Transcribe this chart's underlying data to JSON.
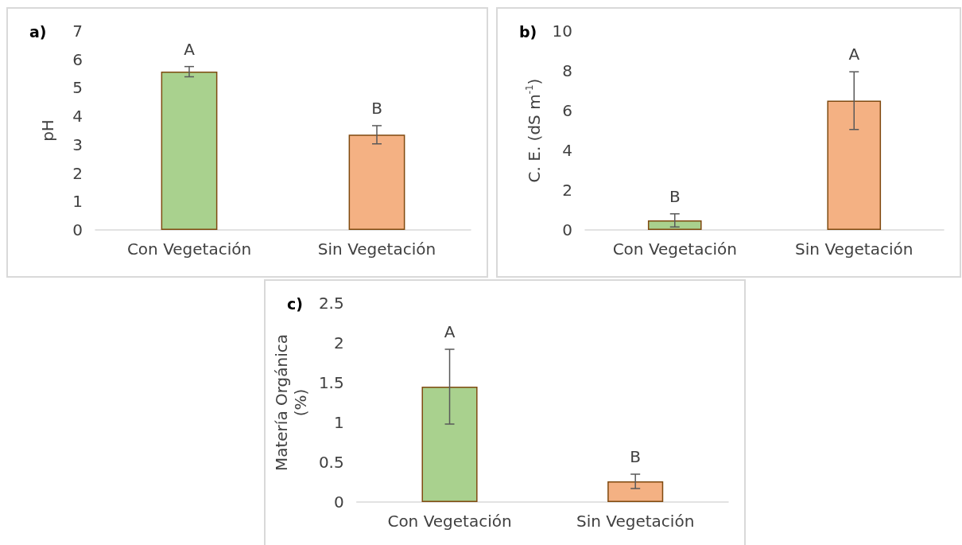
{
  "chart_data": [
    {
      "type": "bar",
      "title": "a)",
      "ylabel": "pH",
      "categories": [
        "Con Vegetación",
        "Sin Vegetación"
      ],
      "values": [
        5.57,
        3.35
      ],
      "errors": [
        0.18,
        0.32
      ],
      "colors": [
        "#a9d18e",
        "#f4b183"
      ],
      "ylim": [
        0,
        7
      ],
      "yticks": [
        0,
        1,
        2,
        3,
        4,
        5,
        6,
        7
      ],
      "annotations": [
        {
          "text": "A",
          "x": "Con Vegetación",
          "y": 5.75
        },
        {
          "text": "B",
          "x": "Sin Vegetación",
          "y": 3.67
        }
      ]
    },
    {
      "type": "bar",
      "title": "b)",
      "ylabel": "C. E. (dS m$^{-1}$)",
      "categories": [
        "Con Vegetación",
        "Sin Vegetación"
      ],
      "values": [
        0.48,
        6.5
      ],
      "errors": [
        0.33,
        1.45
      ],
      "colors": [
        "#a9d18e",
        "#f4b183"
      ],
      "ylim": [
        0,
        10
      ],
      "yticks": [
        0,
        2,
        4,
        6,
        8,
        10
      ],
      "annotations": [
        {
          "text": "B",
          "x": "Con Vegetación",
          "y": 0.81
        },
        {
          "text": "A",
          "x": "Sin Vegetación",
          "y": 7.95
        }
      ]
    },
    {
      "type": "bar",
      "title": "c)",
      "ylabel": "Matería Orgánica\n(%)",
      "categories": [
        "Con Vegetación",
        "Sin Vegetación"
      ],
      "values": [
        1.45,
        0.26
      ],
      "errors": [
        0.47,
        0.09
      ],
      "colors": [
        "#a9d18e",
        "#f4b183"
      ],
      "ylim": [
        0,
        2.5
      ],
      "yticks": [
        0,
        0.5,
        1,
        1.5,
        2,
        2.5
      ],
      "annotations": [
        {
          "text": "A",
          "x": "Con Vegetación",
          "y": 1.92
        },
        {
          "text": "B",
          "x": "Sin Vegetación",
          "y": 0.35
        }
      ]
    }
  ]
}
